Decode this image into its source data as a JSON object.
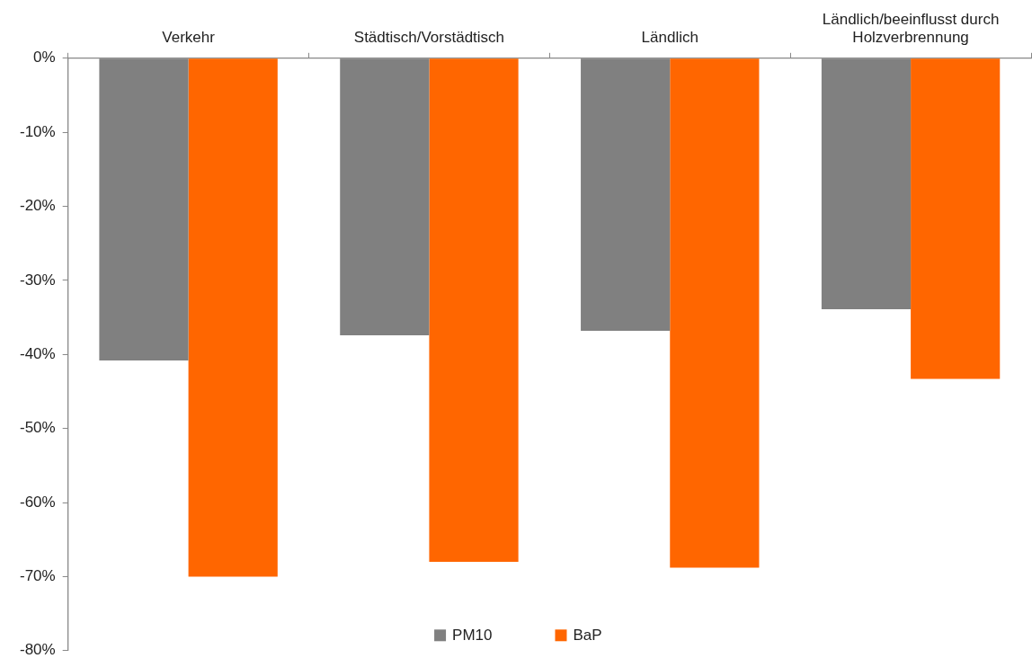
{
  "chart_data": {
    "type": "bar",
    "categories": [
      "Verkehr",
      "Städtisch/Vorstädtisch",
      "Ländlich",
      "Ländlich/beeinflusst durch Holzverbrennung"
    ],
    "series": [
      {
        "name": "PM10",
        "color": "#808080",
        "values": [
          -40.8,
          -37.4,
          -36.8,
          -33.9
        ]
      },
      {
        "name": "BaP",
        "color": "#ff6600",
        "values": [
          -70,
          -68,
          -68.8,
          -43.3
        ]
      }
    ],
    "ylim": [
      -80,
      0
    ],
    "yticks": [
      {
        "value": 0,
        "label": "0%"
      },
      {
        "value": -10,
        "label": "-10%"
      },
      {
        "value": -20,
        "label": "-20%"
      },
      {
        "value": -30,
        "label": "-30%"
      },
      {
        "value": -40,
        "label": "-40%"
      },
      {
        "value": -50,
        "label": "-50%"
      },
      {
        "value": -60,
        "label": "-60%"
      },
      {
        "value": -70,
        "label": "-70%"
      },
      {
        "value": -80,
        "label": "-80%"
      }
    ],
    "legend": "bottom"
  }
}
